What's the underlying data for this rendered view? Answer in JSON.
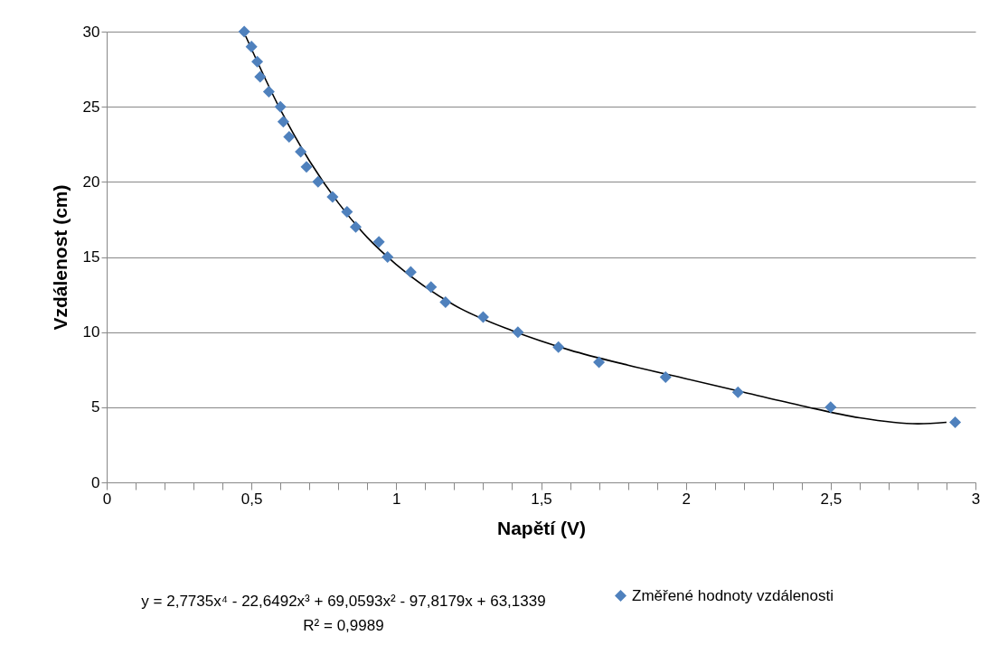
{
  "chart_data": {
    "type": "scatter",
    "xlabel": "Napětí (V)",
    "ylabel": "Vzdálenost (cm)",
    "x": [
      0.475,
      0.5,
      0.52,
      0.53,
      0.56,
      0.6,
      0.61,
      0.63,
      0.67,
      0.69,
      0.73,
      0.78,
      0.83,
      0.86,
      0.94,
      0.97,
      1.05,
      1.12,
      1.17,
      1.3,
      1.42,
      1.56,
      1.7,
      1.93,
      2.18,
      2.5,
      2.93
    ],
    "series": [
      {
        "name": "Změřené hodnoty vzdálenosti",
        "color": "#4f81bd",
        "marker": "diamond",
        "values": [
          30,
          29,
          28,
          27,
          26,
          25,
          24,
          23,
          22,
          21,
          20,
          19,
          18,
          17,
          16,
          15,
          14,
          13,
          12,
          11,
          10,
          9,
          8,
          7,
          6,
          5,
          4
        ]
      },
      {
        "type": "line",
        "color": "#000000",
        "x": [
          0.48,
          0.6,
          0.7,
          0.8,
          0.9,
          1.0,
          1.2,
          1.4,
          1.6,
          1.8,
          2.0,
          2.2,
          2.4,
          2.6,
          2.8,
          2.9
        ],
        "values": [
          29.7,
          24.8,
          21.4,
          18.6,
          16.3,
          14.5,
          11.8,
          10.1,
          8.8,
          7.8,
          6.9,
          6.0,
          5.1,
          4.3,
          3.9,
          4.0
        ]
      }
    ],
    "xlim": [
      0,
      3
    ],
    "ylim": [
      0,
      30
    ],
    "xticks": [
      0,
      {
        "value": 0.1,
        "label": null
      },
      {
        "value": 0.2,
        "label": null
      },
      {
        "value": 0.3,
        "label": null
      },
      {
        "value": 0.4,
        "label": null
      },
      {
        "value": 0.5,
        "label": "0,5"
      },
      {
        "value": 0.6,
        "label": null
      },
      {
        "value": 0.7,
        "label": null
      },
      {
        "value": 0.8,
        "label": null
      },
      {
        "value": 0.9,
        "label": null
      },
      1,
      {
        "value": 1.1,
        "label": null
      },
      {
        "value": 1.2,
        "label": null
      },
      {
        "value": 1.3,
        "label": null
      },
      {
        "value": 1.4,
        "label": null
      },
      {
        "value": 1.5,
        "label": "1,5"
      },
      {
        "value": 1.6,
        "label": null
      },
      {
        "value": 1.7,
        "label": null
      },
      {
        "value": 1.8,
        "label": null
      },
      {
        "value": 1.9,
        "label": null
      },
      2,
      {
        "value": 2.1,
        "label": null
      },
      {
        "value": 2.2,
        "label": null
      },
      {
        "value": 2.3,
        "label": null
      },
      {
        "value": 2.4,
        "label": null
      },
      {
        "value": 2.5,
        "label": "2,5"
      },
      {
        "value": 2.6,
        "label": null
      },
      {
        "value": 2.7,
        "label": null
      },
      {
        "value": 2.8,
        "label": null
      },
      {
        "value": 2.9,
        "label": null
      },
      3
    ],
    "yticks": [
      0,
      5,
      10,
      15,
      20,
      25,
      30
    ],
    "grid": "y",
    "legend": "bottom",
    "annotations": [
      "y = 2,7735x⁴ - 22,6492x³ + 69,0593x² - 97,8179x + 63,1339",
      "R² = 0,9989"
    ]
  }
}
